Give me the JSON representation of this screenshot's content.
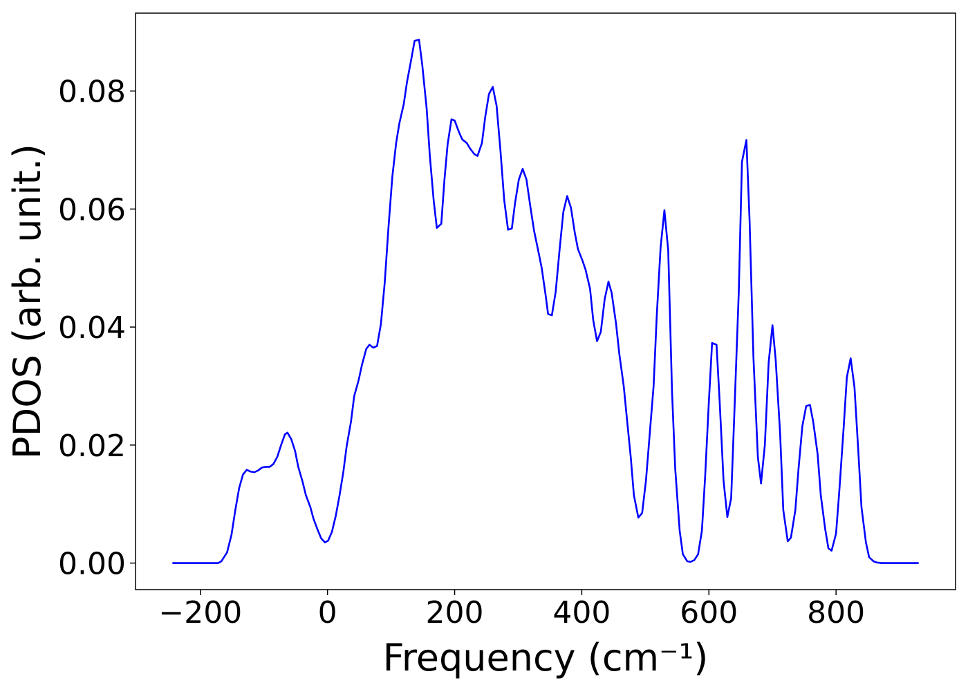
{
  "chart_data": {
    "type": "line",
    "xlabel": "Frequency (cm⁻¹)",
    "ylabel": "PDOS (arb. unit.)",
    "color": "#0000ff",
    "xlim": [
      -302,
      988
    ],
    "ylim": [
      -0.0045,
      0.0932
    ],
    "xticks": [
      {
        "value": -200,
        "label": "−200"
      },
      0,
      200,
      400,
      600,
      800
    ],
    "yticks": [
      {
        "value": 0,
        "label": "0.00"
      },
      {
        "value": 0.02,
        "label": "0.02"
      },
      {
        "value": 0.04,
        "label": "0.04"
      },
      {
        "value": 0.06,
        "label": "0.06"
      },
      {
        "value": 0.08,
        "label": "0.08"
      }
    ],
    "grid": false,
    "x": [
      -244,
      -172,
      -167,
      -158,
      -151,
      -145,
      -139,
      -133,
      -127,
      -121,
      -115,
      -109,
      -103,
      -97,
      -91,
      -85,
      -79,
      -73,
      -67,
      -63,
      -57,
      -51,
      -46,
      -39,
      -34,
      -27,
      -22,
      -15,
      -10,
      -4,
      1,
      7,
      13,
      19,
      25,
      30,
      37,
      42,
      49,
      54,
      61,
      66,
      72,
      78,
      84,
      90,
      96,
      102,
      108,
      113,
      120,
      125,
      132,
      137,
      144,
      149,
      156,
      161,
      167,
      172,
      179,
      184,
      189,
      195,
      200,
      207,
      212,
      219,
      224,
      231,
      236,
      243,
      248,
      254,
      260,
      266,
      272,
      278,
      284,
      290,
      295,
      301,
      307,
      313,
      319,
      325,
      331,
      337,
      343,
      347,
      353,
      359,
      365,
      371,
      377,
      383,
      389,
      394,
      401,
      406,
      413,
      418,
      424,
      430,
      436,
      442,
      447,
      454,
      459,
      466,
      471,
      477,
      482,
      489,
      495,
      501,
      507,
      513,
      518,
      524,
      530,
      536,
      542,
      547,
      554,
      559,
      566,
      571,
      577,
      583,
      589,
      594,
      600,
      605,
      612,
      617,
      623,
      629,
      635,
      640,
      647,
      652,
      659,
      664,
      670,
      677,
      682,
      688,
      694,
      700,
      705,
      712,
      717,
      724,
      729,
      736,
      741,
      747,
      753,
      759,
      764,
      771,
      776,
      783,
      788,
      793,
      800,
      805,
      812,
      817,
      823,
      829,
      835,
      840,
      847,
      852,
      859,
      864,
      871,
      930
    ],
    "values": [
      0,
      0,
      0.0003,
      0.0018,
      0.0048,
      0.009,
      0.0127,
      0.015,
      0.0158,
      0.0155,
      0.0154,
      0.0157,
      0.0162,
      0.0163,
      0.0163,
      0.0168,
      0.018,
      0.02,
      0.0218,
      0.0221,
      0.021,
      0.019,
      0.0163,
      0.0137,
      0.0115,
      0.0095,
      0.0075,
      0.0055,
      0.0042,
      0.0035,
      0.0038,
      0.0053,
      0.008,
      0.0115,
      0.0155,
      0.0197,
      0.024,
      0.0283,
      0.031,
      0.0335,
      0.0363,
      0.037,
      0.0365,
      0.0368,
      0.0405,
      0.0475,
      0.057,
      0.0655,
      0.0712,
      0.0745,
      0.0778,
      0.0815,
      0.0855,
      0.0885,
      0.0887,
      0.0845,
      0.077,
      0.069,
      0.0615,
      0.0568,
      0.0575,
      0.065,
      0.071,
      0.0752,
      0.075,
      0.073,
      0.0718,
      0.0712,
      0.0703,
      0.0693,
      0.069,
      0.0712,
      0.0755,
      0.0795,
      0.0807,
      0.0775,
      0.07,
      0.0615,
      0.0565,
      0.0567,
      0.061,
      0.065,
      0.0668,
      0.065,
      0.0605,
      0.0563,
      0.0532,
      0.05,
      0.0455,
      0.0422,
      0.042,
      0.046,
      0.053,
      0.0595,
      0.0622,
      0.0602,
      0.056,
      0.0532,
      0.0513,
      0.0497,
      0.0465,
      0.0412,
      0.0376,
      0.0392,
      0.0447,
      0.0477,
      0.0458,
      0.0405,
      0.0355,
      0.03,
      0.0245,
      0.018,
      0.0115,
      0.0077,
      0.0085,
      0.014,
      0.022,
      0.03,
      0.042,
      0.0535,
      0.0598,
      0.053,
      0.029,
      0.016,
      0.0055,
      0.0015,
      0.0003,
      0.0002,
      0.0005,
      0.0015,
      0.0055,
      0.0145,
      0.0275,
      0.0373,
      0.037,
      0.0272,
      0.014,
      0.0078,
      0.011,
      0.0253,
      0.046,
      0.068,
      0.0717,
      0.058,
      0.035,
      0.018,
      0.0135,
      0.02,
      0.034,
      0.0403,
      0.0345,
      0.022,
      0.009,
      0.0037,
      0.0043,
      0.009,
      0.016,
      0.0232,
      0.0266,
      0.0268,
      0.024,
      0.0185,
      0.0115,
      0.0057,
      0.0025,
      0.0021,
      0.005,
      0.012,
      0.023,
      0.0315,
      0.0347,
      0.0298,
      0.019,
      0.0095,
      0.0035,
      0.001,
      0.0003,
      0.0001,
      0,
      0
    ]
  }
}
